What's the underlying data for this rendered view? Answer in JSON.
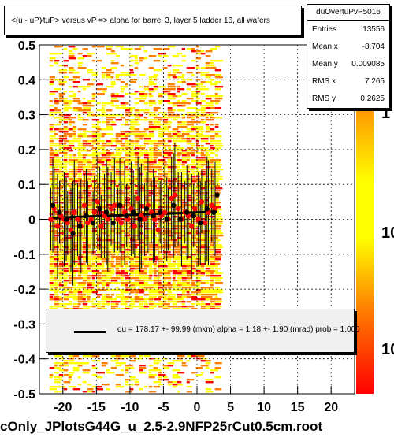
{
  "header": {
    "title": "<(u - uP)∕tuP> versus   vP => alpha for barrel 3, layer 5 ladder 16, all wafers"
  },
  "stats": {
    "name": "duOvertuPvP5016",
    "rows": [
      {
        "label": "Entries",
        "value": "13556"
      },
      {
        "label": "Mean x",
        "value": "-8.704"
      },
      {
        "label": "Mean y",
        "value": "0.009085"
      },
      {
        "label": "RMS x",
        "value": "7.265"
      },
      {
        "label": "RMS y",
        "value": "0.2625"
      }
    ]
  },
  "legend": {
    "text": "du =  178.17 +-  99.99 (mkm) alpha =    1.18 +-  1.90 (mrad) prob = 1.000"
  },
  "footer": {
    "label": "cOnly_JPlotsG44G_u_2.5-2.9NFP25rCut0.5cm.root"
  },
  "colors": {
    "heat_low": "#ffff00",
    "heat_mid": "#ff8000",
    "heat_high": "#ff0000",
    "points_red": "#ff0000",
    "points_black": "#000000",
    "fit_line": "#000000"
  },
  "colorbar": {
    "labels": [
      "1",
      "10",
      "10"
    ]
  },
  "chart_data": {
    "type": "scatter",
    "title": "<(u - uP)∕tuP> versus   vP => alpha for barrel 3, layer 5 ladder 16, all wafers",
    "xlabel": "",
    "ylabel": "",
    "xlim": [
      -23.5,
      23.5
    ],
    "ylim": [
      -0.5,
      0.5
    ],
    "x_ticks": [
      -20,
      -15,
      -10,
      -5,
      0,
      5,
      10,
      15,
      20
    ],
    "y_ticks": [
      -0.5,
      -0.4,
      -0.3,
      -0.2,
      -0.1,
      0,
      0.1,
      0.2,
      0.3,
      0.4,
      0.5
    ],
    "grid": true,
    "heatmap_x_range": [
      -22,
      3
    ],
    "series": [
      {
        "marker": "red-circle",
        "x": [
          -21.8,
          -21.3,
          -20.8,
          -20.3,
          -19.8,
          -19.3,
          -18.8,
          -18.3,
          -17.8,
          -17.3,
          -16.8,
          -16.3,
          -15.8,
          -15.3,
          -14.8,
          -14.3,
          -13.8,
          -13.3,
          -12.8,
          -12.3,
          -11.8,
          -11.3,
          -10.8,
          -10.3,
          -9.8,
          -9.3,
          -8.8,
          -8.3,
          -7.8,
          -7.3,
          -6.8,
          -6.3,
          -5.8,
          -5.3,
          -4.8,
          -4.3,
          -3.8,
          -3.3,
          -2.8,
          -2.3,
          -1.8,
          -1.3,
          -0.8,
          -0.3,
          0.2,
          0.7,
          1.2,
          1.7,
          2.2,
          2.7
        ],
        "y": [
          0.0,
          0.03,
          -0.02,
          0.01,
          0.0,
          -0.01,
          -0.03,
          0.02,
          0.0,
          -0.02,
          0.04,
          -0.01,
          0.0,
          0.02,
          0.05,
          -0.02,
          0.01,
          0.0,
          0.03,
          0.04,
          0.0,
          -0.01,
          0.02,
          0.0,
          0.03,
          -0.02,
          0.06,
          0.01,
          0.0,
          0.04,
          0.02,
          0.0,
          -0.03,
          0.01,
          0.02,
          0.0,
          0.06,
          0.07,
          0.03,
          0.0,
          0.02,
          0.01,
          -0.02,
          0.03,
          0.0,
          0.05,
          -0.01,
          0.02,
          0.04,
          0.03
        ]
      },
      {
        "marker": "black-circle",
        "x": [
          -21.5,
          -20.5,
          -19.5,
          -18.5,
          -17.5,
          -16.5,
          -15.5,
          -14.5,
          -13.5,
          -12.5,
          -11.5,
          -10.5,
          -9.5,
          -8.5,
          -7.5,
          -6.5,
          -5.5,
          -4.5,
          -3.5,
          -2.5,
          -1.5,
          -0.5,
          0.5,
          1.5,
          2.5,
          3.0
        ],
        "y": [
          0.04,
          0.02,
          0.0,
          -0.04,
          -0.02,
          0.01,
          -0.01,
          0.03,
          0.02,
          -0.01,
          0.04,
          0.01,
          0.02,
          0.0,
          0.03,
          0.01,
          0.02,
          0.0,
          0.04,
          0.0,
          0.02,
          0.01,
          -0.01,
          0.03,
          0.02,
          0.07
        ]
      }
    ],
    "fit_line": {
      "x": [
        -22,
        3
      ],
      "y": [
        0.004,
        0.022
      ]
    }
  }
}
